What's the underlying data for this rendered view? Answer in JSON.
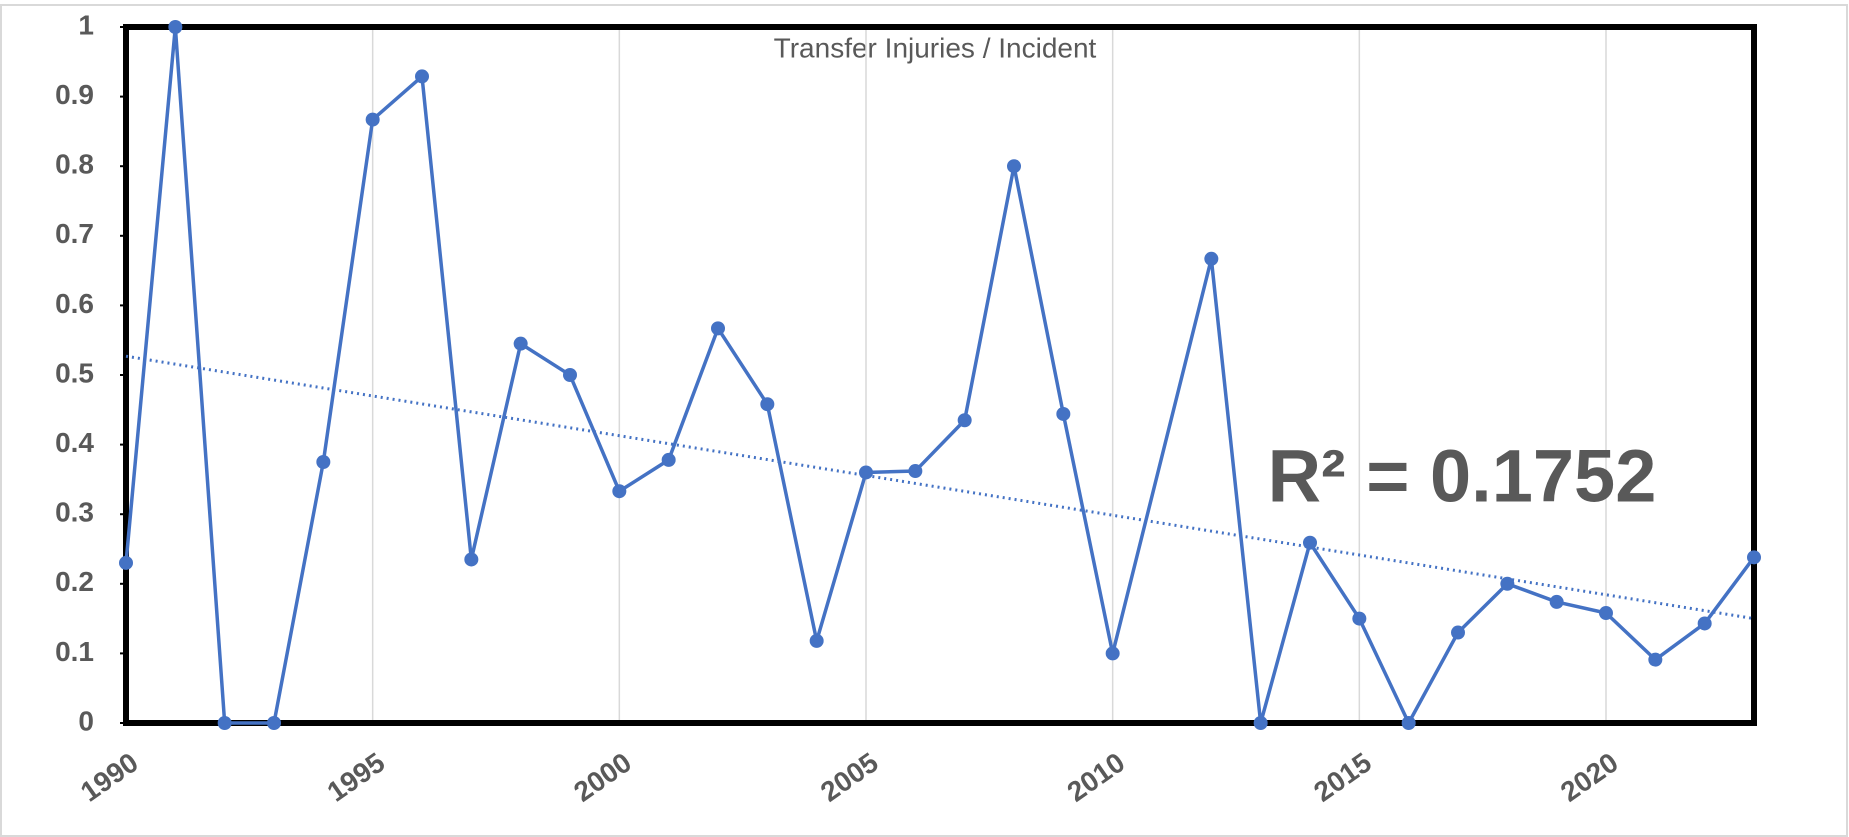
{
  "chart_data": {
    "type": "line",
    "title": "Transfer Injuries / Incident",
    "x": [
      1990,
      1991,
      1992,
      1993,
      1994,
      1995,
      1996,
      1997,
      1998,
      1999,
      2000,
      2001,
      2002,
      2003,
      2004,
      2005,
      2006,
      2007,
      2008,
      2009,
      2010,
      2012,
      2013,
      2014,
      2015,
      2016,
      2017,
      2018,
      2019,
      2020,
      2021,
      2022,
      2023
    ],
    "values": [
      0.23,
      1.0,
      0,
      0,
      0.375,
      0.867,
      0.929,
      0.235,
      0.545,
      0.5,
      0.333,
      0.378,
      0.567,
      0.458,
      0.118,
      0.36,
      0.362,
      0.435,
      0.8,
      0.444,
      0.1,
      0.667,
      0,
      0.259,
      0.15,
      0,
      0.13,
      0.2,
      0.174,
      0.158,
      0.091,
      0.143,
      0.238
    ],
    "color": "#4472c4",
    "trendline": {
      "x": [
        1990,
        2023
      ],
      "values": [
        0.527,
        0.15
      ]
    },
    "annotation": "R² = 0.1752",
    "xlim": [
      1990,
      2023
    ],
    "xticks": [
      1990,
      1995,
      2000,
      2005,
      2010,
      2015,
      2020
    ],
    "ylim": [
      0,
      1
    ],
    "yticks": [
      0,
      0.1,
      0.2,
      0.3,
      0.4,
      0.5,
      0.6,
      0.7,
      0.8,
      0.9,
      1
    ],
    "grid": "x"
  }
}
